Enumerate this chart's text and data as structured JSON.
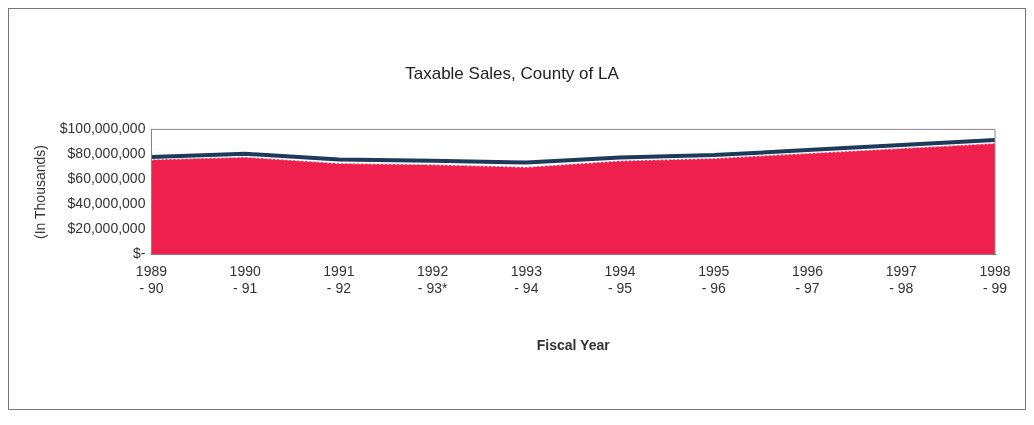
{
  "chart_data": {
    "type": "area",
    "title": "Taxable Sales, County of LA",
    "xlabel": "Fiscal Year",
    "ylabel": "(In Thousands)",
    "categories": [
      "1989\n- 90",
      "1990\n- 91",
      "1991\n- 92",
      "1992\n- 93*",
      "1993\n- 94",
      "1994\n- 95",
      "1995\n- 96",
      "1996\n- 97",
      "1997\n- 98",
      "1998\n- 99"
    ],
    "series": [
      {
        "color": "#f0204e",
        "values": [
          76000000,
          78000000,
          73000000,
          72000000,
          70000000,
          75000000,
          77000000,
          81000000,
          85000000,
          89000000
        ]
      },
      {
        "type": "line",
        "color": "#1d3a5a",
        "values": [
          78000000,
          80500000,
          76000000,
          75000000,
          73500000,
          77500000,
          79500000,
          83500000,
          87500000,
          91500000
        ]
      }
    ],
    "ylim": [
      0,
      100000000
    ],
    "yticks": [
      {
        "value": 0,
        "label": "$-"
      },
      {
        "value": 20000000,
        "label": "$20,000,000"
      },
      {
        "value": 40000000,
        "label": "$40,000,000"
      },
      {
        "value": 60000000,
        "label": "$60,000,000"
      },
      {
        "value": 80000000,
        "label": "$80,000,000"
      },
      {
        "value": 100000000,
        "label": "$100,000,000"
      }
    ],
    "grid": false,
    "legend": false
  }
}
